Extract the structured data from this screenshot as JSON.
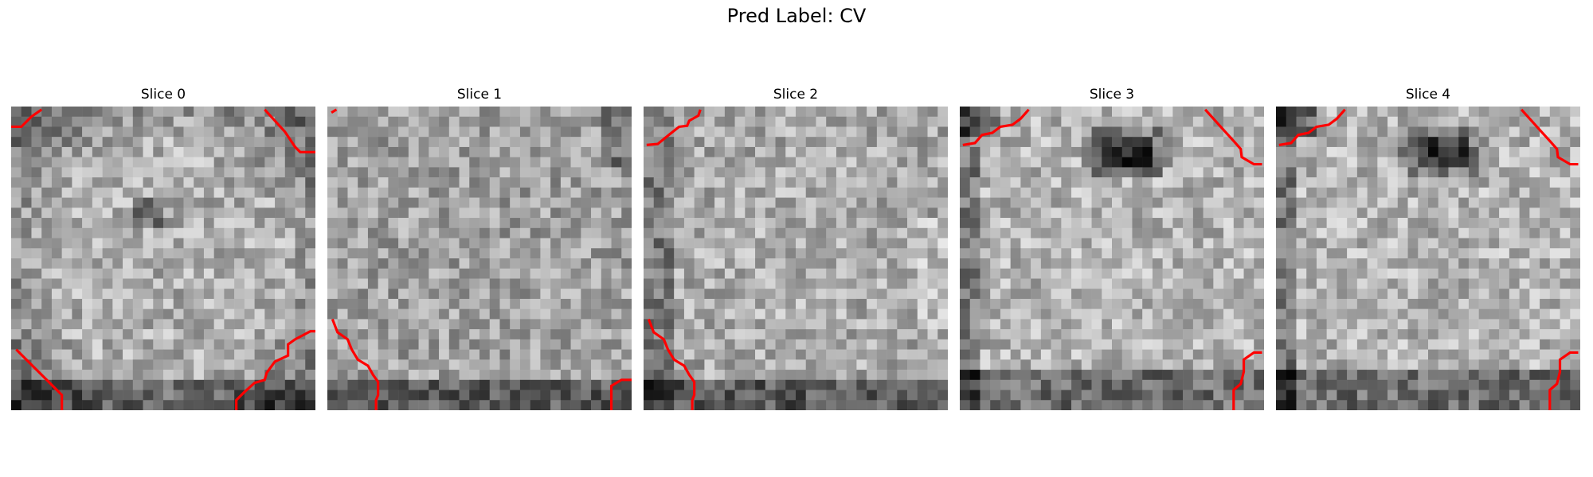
{
  "figure": {
    "title": "Pred Label: CV"
  },
  "panels": [
    {
      "title": "Slice 0",
      "pattern": "ring"
    },
    {
      "title": "Slice 1",
      "pattern": "uniform"
    },
    {
      "title": "Slice 2",
      "pattern": "bright-center"
    },
    {
      "title": "Slice 3",
      "pattern": "dark-top-center"
    },
    {
      "title": "Slice 4",
      "pattern": "dark-top-center"
    }
  ],
  "colors": {
    "contour": "#ff0000",
    "background": "#ffffff"
  }
}
